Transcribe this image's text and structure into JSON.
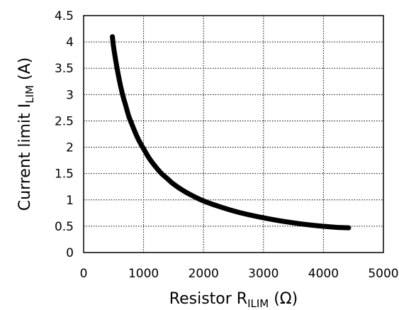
{
  "chart_data": {
    "type": "line",
    "title": "",
    "xlabel": {
      "main": "Resistor R",
      "sub": "ILIM",
      "suffix": " (Ω)"
    },
    "ylabel": {
      "main": "Current limit I",
      "sub": "LIM",
      "suffix": " (A)"
    },
    "xlim": [
      0,
      5000
    ],
    "ylim": [
      0,
      4.5
    ],
    "x_ticks": [
      "0",
      "1000",
      "2000",
      "3000",
      "4000",
      "5000"
    ],
    "y_ticks": [
      "0",
      "0.5",
      "1",
      "1.5",
      "2",
      "2.5",
      "3",
      "3.5",
      "4",
      "4.5"
    ],
    "grid": true,
    "legend": "none",
    "series": [
      {
        "color": "#000000",
        "x": [
          480,
          500,
          550,
          600,
          650,
          700,
          750,
          800,
          900,
          1000,
          1100,
          1200,
          1300,
          1400,
          1500,
          1700,
          2000,
          2300,
          2600,
          3000,
          3400,
          3800,
          4200,
          4420
        ],
        "y": [
          4.1,
          3.9,
          3.55,
          3.25,
          3.0,
          2.8,
          2.6,
          2.45,
          2.18,
          1.97,
          1.78,
          1.63,
          1.5,
          1.4,
          1.3,
          1.15,
          0.98,
          0.86,
          0.76,
          0.66,
          0.58,
          0.52,
          0.48,
          0.47
        ]
      }
    ]
  }
}
